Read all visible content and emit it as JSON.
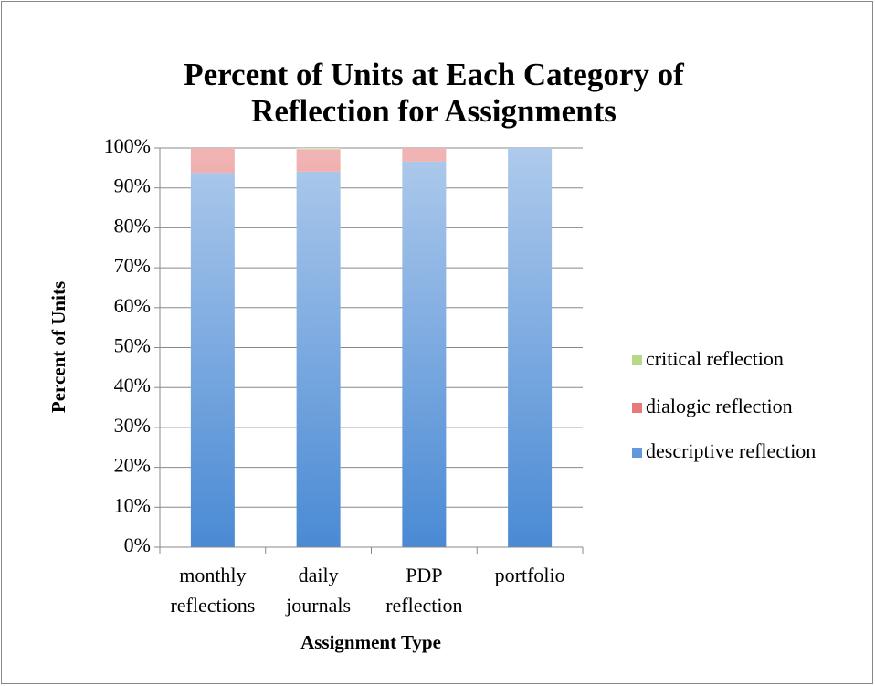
{
  "chart_data": {
    "type": "stacked_bar",
    "title": "Percent of Units at Each Category of Reflection for Assignments",
    "xlabel": "Assignment Type",
    "ylabel": "Percent of Units",
    "categories": [
      "monthly reflections",
      "daily journals",
      "PDP reflection",
      "portfolio"
    ],
    "series": [
      {
        "name": "descriptive reflection",
        "color": "#4a8ad4",
        "values": [
          93.8,
          94.1,
          96.6,
          100
        ]
      },
      {
        "name": "dialogic reflection",
        "color": "#e05a5a",
        "values": [
          6.2,
          5.6,
          3.4,
          0
        ]
      },
      {
        "name": "critical reflection",
        "color": "#9fcc5e",
        "values": [
          0,
          0.3,
          0,
          0
        ]
      }
    ],
    "ylim": [
      0,
      100
    ],
    "yticks": [
      {
        "value": 0,
        "label": "0%"
      },
      {
        "value": 10,
        "label": "10%"
      },
      {
        "value": 20,
        "label": "20%"
      },
      {
        "value": 30,
        "label": "30%"
      },
      {
        "value": 40,
        "label": "40%"
      },
      {
        "value": 50,
        "label": "50%"
      },
      {
        "value": 60,
        "label": "60%"
      },
      {
        "value": 70,
        "label": "70%"
      },
      {
        "value": 80,
        "label": "80%"
      },
      {
        "value": 90,
        "label": "90%"
      },
      {
        "value": 100,
        "label": "100%"
      }
    ],
    "grid": true,
    "legend": "right"
  }
}
